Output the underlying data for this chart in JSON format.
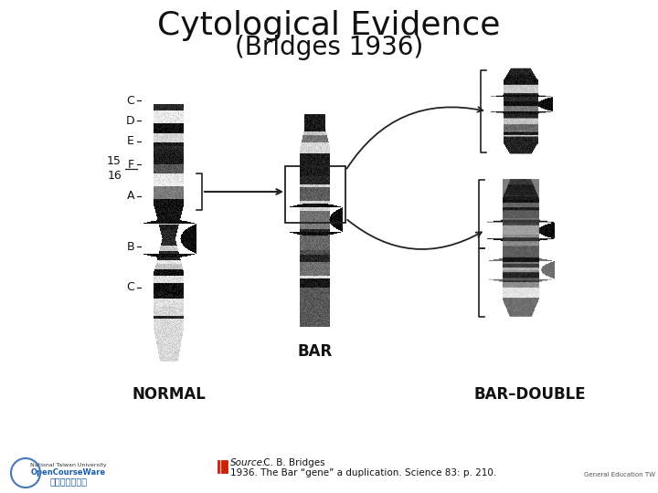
{
  "title_line1": "Cytological Evidence",
  "title_line2": "(Bridges 1936)",
  "source_italic": "Source:",
  "source_author": " C. B. Bridges",
  "source_line2": "1936. The Bar “gene” a duplication. Science 83: p. 210.",
  "background_color": "#ffffff",
  "title_fontsize": 26,
  "subtitle_fontsize": 20,
  "label_normal": "NORMAL",
  "label_bar": "BAR",
  "label_bar_double": "BAR–DOUBLE",
  "band_labels": [
    "C",
    "D",
    "E",
    "F",
    "A",
    "B",
    "C"
  ],
  "num15": "15",
  "num16": "16"
}
